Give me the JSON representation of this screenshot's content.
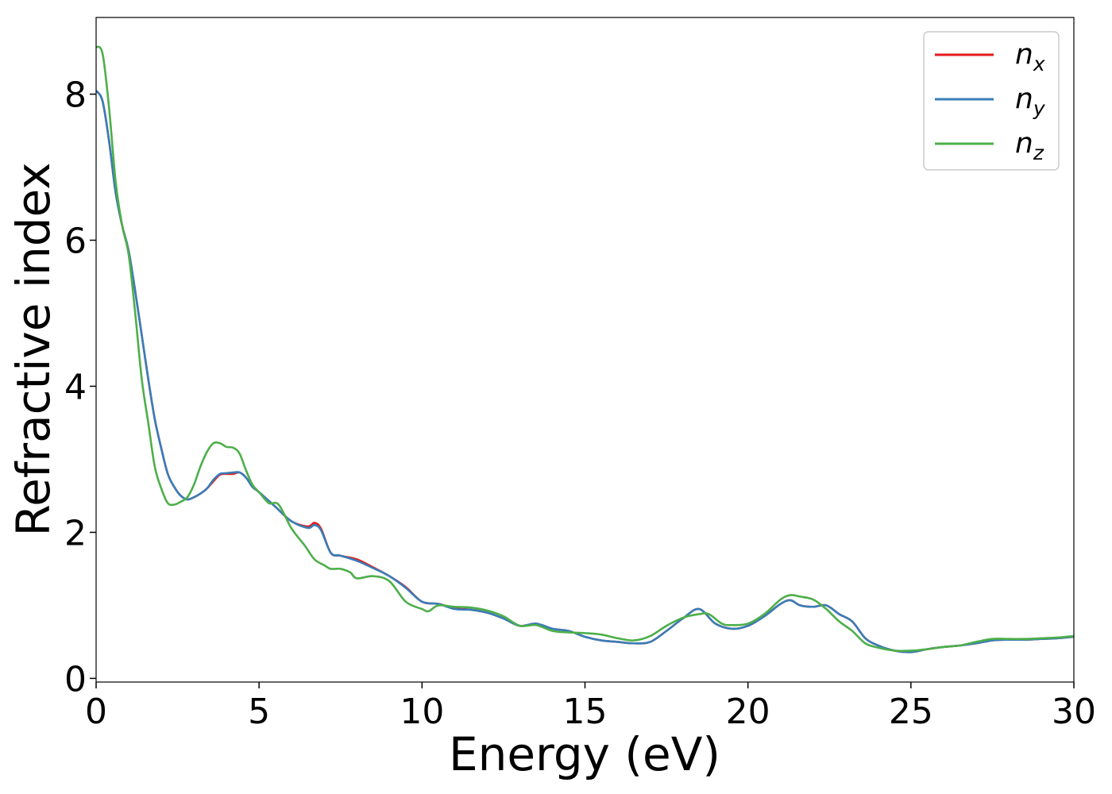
{
  "chart_data": {
    "type": "line",
    "title": "",
    "xlabel": "Energy (eV)",
    "ylabel": "Refractive index",
    "xlim": [
      0,
      30
    ],
    "ylim": [
      -0.05,
      9.05
    ],
    "xticks": [
      0,
      5,
      10,
      15,
      20,
      25,
      30
    ],
    "yticks": [
      0,
      2,
      4,
      6,
      8
    ],
    "grid": false,
    "legend_position": "top-right",
    "series": [
      {
        "name": "n",
        "subscript": "x",
        "color": "#e41a1c",
        "points": [
          [
            0,
            8.05
          ],
          [
            0.2,
            7.9
          ],
          [
            0.4,
            7.35
          ],
          [
            0.6,
            6.65
          ],
          [
            0.8,
            6.2
          ],
          [
            1,
            5.85
          ],
          [
            1.2,
            5.3
          ],
          [
            1.4,
            4.7
          ],
          [
            1.6,
            4.1
          ],
          [
            1.8,
            3.55
          ],
          [
            2,
            3.15
          ],
          [
            2.2,
            2.8
          ],
          [
            2.4,
            2.62
          ],
          [
            2.6,
            2.5
          ],
          [
            2.8,
            2.45
          ],
          [
            3,
            2.48
          ],
          [
            3.2,
            2.53
          ],
          [
            3.4,
            2.6
          ],
          [
            3.6,
            2.7
          ],
          [
            3.8,
            2.79
          ],
          [
            4,
            2.8
          ],
          [
            4.2,
            2.8
          ],
          [
            4.4,
            2.82
          ],
          [
            4.6,
            2.75
          ],
          [
            4.8,
            2.62
          ],
          [
            5,
            2.55
          ],
          [
            5.5,
            2.35
          ],
          [
            6,
            2.15
          ],
          [
            6.5,
            2.08
          ],
          [
            6.7,
            2.13
          ],
          [
            6.9,
            2.05
          ],
          [
            7.2,
            1.72
          ],
          [
            7.5,
            1.68
          ],
          [
            8,
            1.63
          ],
          [
            8.5,
            1.52
          ],
          [
            9,
            1.4
          ],
          [
            9.5,
            1.25
          ],
          [
            10,
            1.05
          ],
          [
            10.5,
            1.02
          ],
          [
            11,
            0.96
          ],
          [
            11.5,
            0.94
          ],
          [
            12,
            0.9
          ],
          [
            12.5,
            0.82
          ],
          [
            13,
            0.72
          ],
          [
            13.5,
            0.75
          ],
          [
            14,
            0.68
          ],
          [
            14.5,
            0.65
          ],
          [
            15,
            0.57
          ],
          [
            15.5,
            0.52
          ],
          [
            16,
            0.5
          ],
          [
            16.5,
            0.48
          ],
          [
            17,
            0.5
          ],
          [
            17.5,
            0.65
          ],
          [
            18,
            0.82
          ],
          [
            18.5,
            0.95
          ],
          [
            19,
            0.75
          ],
          [
            19.5,
            0.68
          ],
          [
            20,
            0.72
          ],
          [
            20.5,
            0.85
          ],
          [
            21,
            1.02
          ],
          [
            21.3,
            1.07
          ],
          [
            21.6,
            1.0
          ],
          [
            22,
            0.98
          ],
          [
            22.4,
            1.0
          ],
          [
            22.8,
            0.88
          ],
          [
            23.2,
            0.78
          ],
          [
            23.6,
            0.55
          ],
          [
            24,
            0.45
          ],
          [
            24.5,
            0.38
          ],
          [
            25,
            0.36
          ],
          [
            25.5,
            0.4
          ],
          [
            26,
            0.43
          ],
          [
            26.5,
            0.45
          ],
          [
            27,
            0.48
          ],
          [
            27.5,
            0.52
          ],
          [
            28,
            0.53
          ],
          [
            28.5,
            0.53
          ],
          [
            29,
            0.54
          ],
          [
            29.5,
            0.55
          ],
          [
            30,
            0.57
          ]
        ]
      },
      {
        "name": "n",
        "subscript": "y",
        "color": "#377eb8",
        "points": [
          [
            0,
            8.05
          ],
          [
            0.2,
            7.9
          ],
          [
            0.4,
            7.35
          ],
          [
            0.6,
            6.65
          ],
          [
            0.8,
            6.2
          ],
          [
            1,
            5.85
          ],
          [
            1.2,
            5.3
          ],
          [
            1.4,
            4.7
          ],
          [
            1.6,
            4.1
          ],
          [
            1.8,
            3.55
          ],
          [
            2,
            3.15
          ],
          [
            2.2,
            2.8
          ],
          [
            2.4,
            2.62
          ],
          [
            2.6,
            2.5
          ],
          [
            2.8,
            2.45
          ],
          [
            3,
            2.48
          ],
          [
            3.2,
            2.53
          ],
          [
            3.4,
            2.6
          ],
          [
            3.6,
            2.72
          ],
          [
            3.8,
            2.8
          ],
          [
            4,
            2.81
          ],
          [
            4.2,
            2.82
          ],
          [
            4.4,
            2.82
          ],
          [
            4.6,
            2.75
          ],
          [
            4.8,
            2.62
          ],
          [
            5,
            2.55
          ],
          [
            5.5,
            2.35
          ],
          [
            6,
            2.15
          ],
          [
            6.5,
            2.06
          ],
          [
            6.7,
            2.1
          ],
          [
            6.9,
            2.03
          ],
          [
            7.2,
            1.72
          ],
          [
            7.5,
            1.68
          ],
          [
            8,
            1.61
          ],
          [
            8.5,
            1.51
          ],
          [
            9,
            1.4
          ],
          [
            9.5,
            1.24
          ],
          [
            10,
            1.05
          ],
          [
            10.5,
            1.02
          ],
          [
            11,
            0.95
          ],
          [
            11.5,
            0.94
          ],
          [
            12,
            0.9
          ],
          [
            12.5,
            0.82
          ],
          [
            13,
            0.72
          ],
          [
            13.5,
            0.75
          ],
          [
            14,
            0.68
          ],
          [
            14.5,
            0.65
          ],
          [
            15,
            0.57
          ],
          [
            15.5,
            0.52
          ],
          [
            16,
            0.5
          ],
          [
            16.5,
            0.48
          ],
          [
            17,
            0.5
          ],
          [
            17.5,
            0.65
          ],
          [
            18,
            0.82
          ],
          [
            18.5,
            0.95
          ],
          [
            19,
            0.75
          ],
          [
            19.5,
            0.68
          ],
          [
            20,
            0.72
          ],
          [
            20.5,
            0.85
          ],
          [
            21,
            1.02
          ],
          [
            21.3,
            1.07
          ],
          [
            21.6,
            1.0
          ],
          [
            22,
            0.98
          ],
          [
            22.4,
            1.0
          ],
          [
            22.8,
            0.88
          ],
          [
            23.2,
            0.78
          ],
          [
            23.6,
            0.55
          ],
          [
            24,
            0.45
          ],
          [
            24.5,
            0.38
          ],
          [
            25,
            0.36
          ],
          [
            25.5,
            0.4
          ],
          [
            26,
            0.43
          ],
          [
            26.5,
            0.45
          ],
          [
            27,
            0.48
          ],
          [
            27.5,
            0.52
          ],
          [
            28,
            0.53
          ],
          [
            28.5,
            0.53
          ],
          [
            29,
            0.54
          ],
          [
            29.5,
            0.55
          ],
          [
            30,
            0.57
          ]
        ]
      },
      {
        "name": "n",
        "subscript": "z",
        "color": "#4daf4a",
        "points": [
          [
            0,
            8.65
          ],
          [
            0.2,
            8.55
          ],
          [
            0.4,
            7.8
          ],
          [
            0.6,
            6.8
          ],
          [
            0.8,
            6.2
          ],
          [
            1,
            5.8
          ],
          [
            1.2,
            5.0
          ],
          [
            1.4,
            4.1
          ],
          [
            1.6,
            3.5
          ],
          [
            1.8,
            2.9
          ],
          [
            2,
            2.6
          ],
          [
            2.2,
            2.4
          ],
          [
            2.4,
            2.38
          ],
          [
            2.6,
            2.42
          ],
          [
            2.8,
            2.48
          ],
          [
            3,
            2.65
          ],
          [
            3.2,
            2.9
          ],
          [
            3.4,
            3.1
          ],
          [
            3.6,
            3.22
          ],
          [
            3.8,
            3.22
          ],
          [
            4,
            3.17
          ],
          [
            4.2,
            3.16
          ],
          [
            4.4,
            3.08
          ],
          [
            4.6,
            2.85
          ],
          [
            4.8,
            2.65
          ],
          [
            5,
            2.55
          ],
          [
            5.3,
            2.4
          ],
          [
            5.6,
            2.38
          ],
          [
            6,
            2.05
          ],
          [
            6.4,
            1.82
          ],
          [
            6.7,
            1.63
          ],
          [
            7,
            1.55
          ],
          [
            7.2,
            1.5
          ],
          [
            7.5,
            1.5
          ],
          [
            7.8,
            1.45
          ],
          [
            8,
            1.37
          ],
          [
            8.5,
            1.4
          ],
          [
            9,
            1.33
          ],
          [
            9.5,
            1.05
          ],
          [
            10,
            0.95
          ],
          [
            10.2,
            0.92
          ],
          [
            10.5,
            1.0
          ],
          [
            11,
            0.98
          ],
          [
            11.5,
            0.97
          ],
          [
            12,
            0.93
          ],
          [
            12.5,
            0.85
          ],
          [
            13,
            0.72
          ],
          [
            13.5,
            0.73
          ],
          [
            14,
            0.65
          ],
          [
            14.5,
            0.63
          ],
          [
            15,
            0.62
          ],
          [
            15.5,
            0.6
          ],
          [
            16,
            0.55
          ],
          [
            16.5,
            0.52
          ],
          [
            17,
            0.58
          ],
          [
            17.5,
            0.72
          ],
          [
            18,
            0.83
          ],
          [
            18.5,
            0.88
          ],
          [
            18.8,
            0.88
          ],
          [
            19.2,
            0.75
          ],
          [
            19.5,
            0.73
          ],
          [
            20,
            0.75
          ],
          [
            20.5,
            0.88
          ],
          [
            21,
            1.08
          ],
          [
            21.3,
            1.14
          ],
          [
            21.6,
            1.12
          ],
          [
            22,
            1.08
          ],
          [
            22.4,
            0.95
          ],
          [
            22.8,
            0.78
          ],
          [
            23.2,
            0.65
          ],
          [
            23.6,
            0.48
          ],
          [
            24,
            0.42
          ],
          [
            24.5,
            0.38
          ],
          [
            25,
            0.38
          ],
          [
            25.5,
            0.4
          ],
          [
            26,
            0.43
          ],
          [
            26.5,
            0.45
          ],
          [
            27,
            0.5
          ],
          [
            27.5,
            0.54
          ],
          [
            28,
            0.54
          ],
          [
            28.5,
            0.54
          ],
          [
            29,
            0.55
          ],
          [
            29.5,
            0.56
          ],
          [
            30,
            0.58
          ]
        ]
      }
    ]
  }
}
